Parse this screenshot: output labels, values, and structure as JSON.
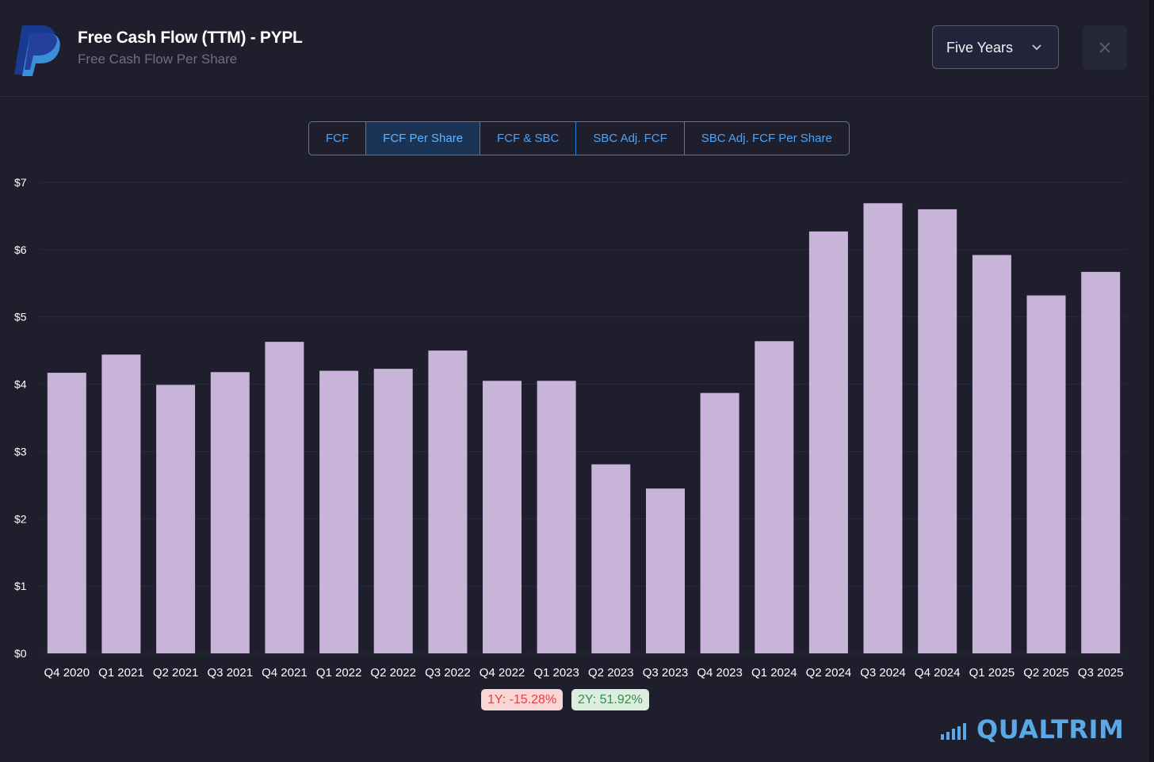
{
  "header": {
    "title": "Free Cash Flow (TTM) - PYPL",
    "subtitle": "Free Cash Flow Per Share",
    "period_selected": "Five Years",
    "close_symbol": "×"
  },
  "tabs": [
    {
      "label": "FCF",
      "active": false
    },
    {
      "label": "FCF Per Share",
      "active": true
    },
    {
      "label": "FCF & SBC",
      "active": false
    },
    {
      "label": "SBC Adj. FCF",
      "active": false
    },
    {
      "label": "SBC Adj. FCF Per Share",
      "active": false
    }
  ],
  "colors": {
    "bar": "#c8b4d9",
    "background": "#1e1e2d",
    "grid": "#2b2c3c",
    "accent": "#2f7fdc"
  },
  "chart_data": {
    "type": "bar",
    "title": "Free Cash Flow Per Share",
    "xlabel": "",
    "ylabel": "",
    "ylim": [
      0,
      7
    ],
    "yticks": [
      "$0",
      "$1",
      "$2",
      "$3",
      "$4",
      "$5",
      "$6",
      "$7"
    ],
    "grid": true,
    "categories": [
      "Q4 2020",
      "Q1 2021",
      "Q2 2021",
      "Q3 2021",
      "Q4 2021",
      "Q1 2022",
      "Q2 2022",
      "Q3 2022",
      "Q4 2022",
      "Q1 2023",
      "Q2 2023",
      "Q3 2023",
      "Q4 2023",
      "Q1 2024",
      "Q2 2024",
      "Q3 2024",
      "Q4 2024",
      "Q1 2025",
      "Q2 2025",
      "Q3 2025"
    ],
    "values": [
      4.17,
      4.44,
      3.99,
      4.18,
      4.63,
      4.2,
      4.23,
      4.5,
      4.05,
      4.05,
      2.81,
      2.45,
      3.87,
      4.64,
      6.27,
      6.69,
      6.6,
      5.92,
      5.32,
      5.67
    ]
  },
  "stats": {
    "one_year": "1Y: -15.28%",
    "two_year": "2Y: 51.92%"
  },
  "brand": {
    "name": "QUALTRIM"
  }
}
